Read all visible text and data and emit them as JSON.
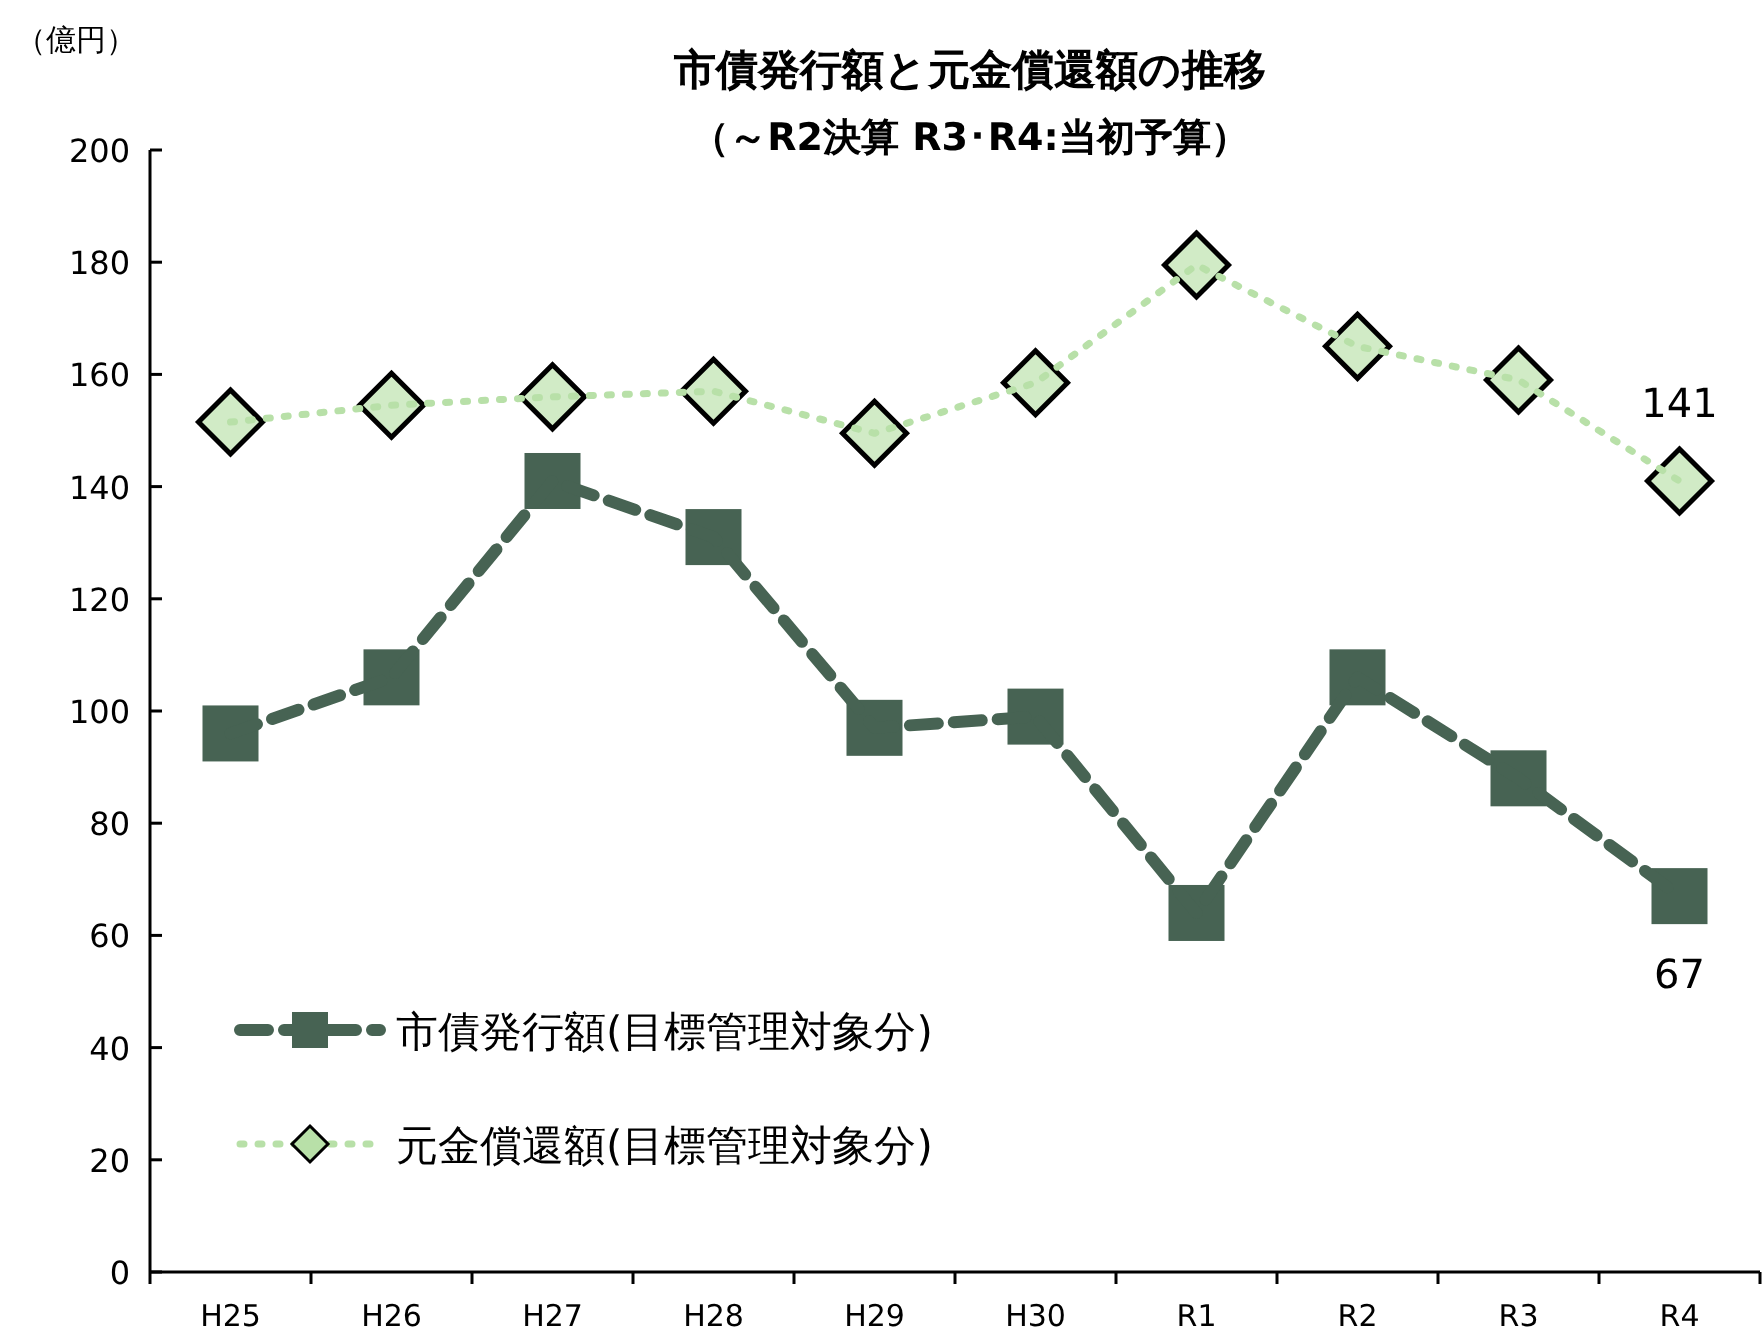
{
  "chart_data": {
    "type": "line",
    "title": "市債発行額と元金償還額の推移",
    "subtitle": "（～R2決算  R3･R4:当初予算）",
    "ylabel": "（億円）",
    "categories": [
      "H25",
      "H26",
      "H27",
      "H28",
      "H29",
      "H30",
      "R1",
      "R2",
      "R3",
      "R4"
    ],
    "series": [
      {
        "name": "市債発行額(目標管理対象分)",
        "color": "#476353",
        "marker": "square",
        "line_style": "dashed",
        "values": [
          96,
          106,
          141,
          131,
          97,
          99,
          64,
          106,
          88,
          67
        ],
        "value_labels": [
          null,
          null,
          null,
          null,
          null,
          null,
          null,
          null,
          null,
          "67"
        ]
      },
      {
        "name": "元金償還額(目標管理対象分)",
        "color": "#b8e0a8",
        "marker": "diamond",
        "line_style": "dotted",
        "values": [
          151.5,
          154.5,
          156,
          157,
          149.5,
          158.5,
          179.5,
          165,
          159,
          141
        ],
        "value_labels": [
          null,
          null,
          null,
          null,
          null,
          null,
          null,
          null,
          null,
          "141"
        ]
      }
    ],
    "ylim": [
      0,
      200
    ],
    "yticks": [
      0,
      20,
      40,
      60,
      80,
      100,
      120,
      140,
      160,
      180,
      200
    ],
    "legend": "bottom left"
  }
}
